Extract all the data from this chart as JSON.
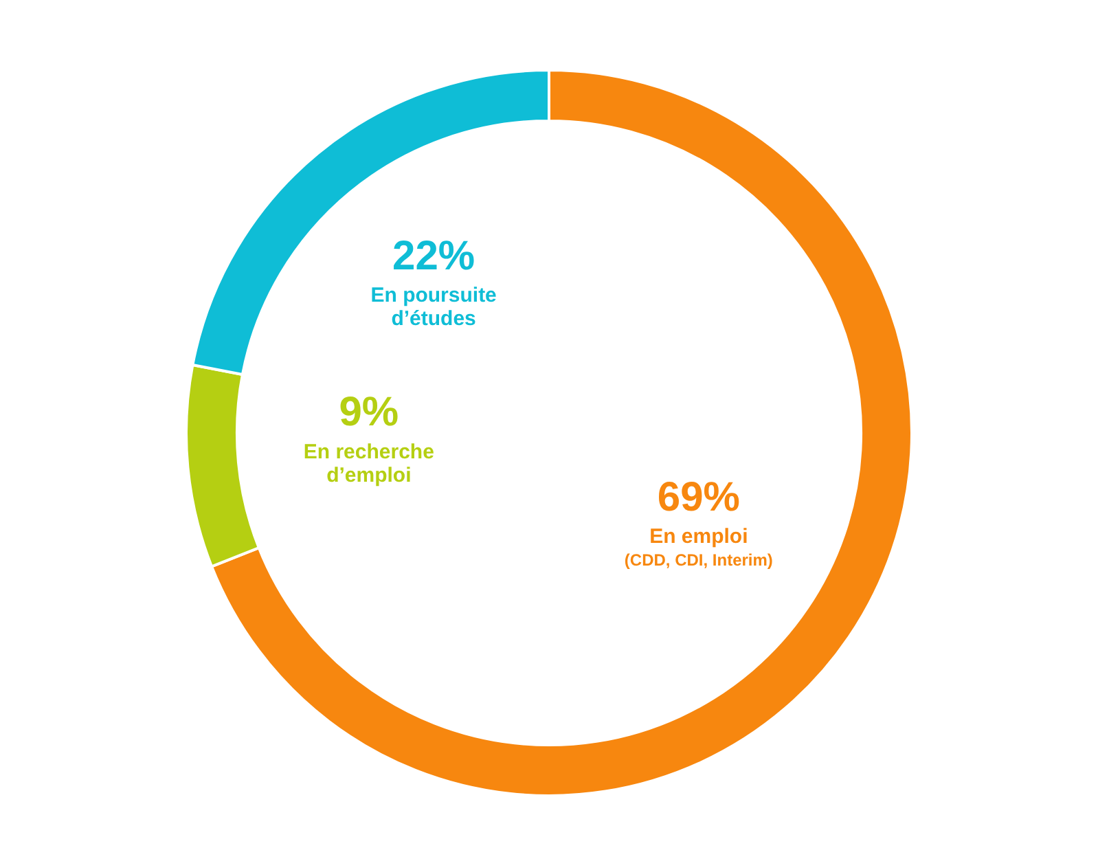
{
  "chart_data": {
    "type": "donut",
    "categories": [
      "En emploi\n(CDD, CDI, Interim)",
      "En recherche\nd’emploi",
      "En poursuite\nd’études"
    ],
    "values": [
      69,
      9,
      22
    ],
    "value_labels": [
      "69%",
      "9%",
      "22%"
    ],
    "colors": [
      "#f7870f",
      "#b5cf12",
      "#0fbdd6"
    ],
    "legend": false
  }
}
